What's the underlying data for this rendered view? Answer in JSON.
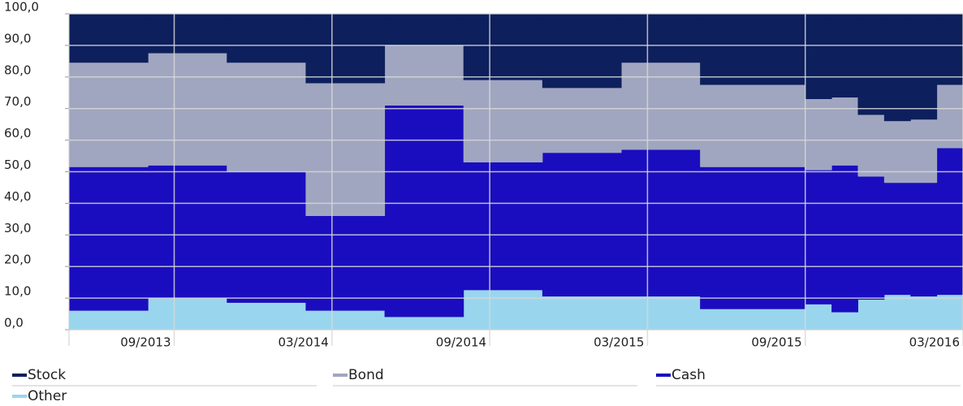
{
  "chart_data": {
    "type": "step-area",
    "x": [
      "05/2013",
      "08/2013",
      "11/2013",
      "02/2014",
      "05/2014",
      "08/2014",
      "11/2014",
      "02/2015",
      "05/2015",
      "09/2015",
      "10/2015",
      "11/2015",
      "12/2015",
      "01/2016",
      "02/2016"
    ],
    "xlim": [
      "05/2013",
      "03/2016"
    ],
    "xticks": [
      "09/2013",
      "03/2014",
      "09/2014",
      "03/2015",
      "09/2015",
      "03/2016"
    ],
    "ylim": [
      0,
      100
    ],
    "yticks": [
      {
        "value": 0,
        "label": "0,0"
      },
      {
        "value": 10,
        "label": "10,0"
      },
      {
        "value": 20,
        "label": "20,0"
      },
      {
        "value": 30,
        "label": "30,0"
      },
      {
        "value": 40,
        "label": "40,0"
      },
      {
        "value": 50,
        "label": "50,0"
      },
      {
        "value": 60,
        "label": "60,0"
      },
      {
        "value": 70,
        "label": "70,0"
      },
      {
        "value": 80,
        "label": "80,0"
      },
      {
        "value": 90,
        "label": "90,0"
      },
      {
        "value": 100,
        "label": "100,0"
      }
    ],
    "grid": true,
    "series": [
      {
        "name": "Stock",
        "color": "#0d1f5c",
        "values": [
          15.5,
          12.5,
          15.5,
          22,
          10,
          21,
          23.5,
          15.5,
          22.5,
          27,
          26.5,
          32,
          34,
          33.5,
          22.5
        ]
      },
      {
        "name": "Bond",
        "color": "#a0a6c0",
        "values": [
          33,
          35.5,
          34.5,
          42,
          19,
          26,
          20.5,
          27.5,
          26,
          22.5,
          21.5,
          19.5,
          19.5,
          20,
          20
        ]
      },
      {
        "name": "Cash",
        "color": "#1a0dbf",
        "values": [
          45.5,
          42,
          41.5,
          30,
          67,
          40.5,
          45.5,
          46.5,
          45,
          42.5,
          46.5,
          39,
          35.5,
          36,
          46.5
        ]
      },
      {
        "name": "Other",
        "color": "#99d6ee",
        "values": [
          6,
          10,
          8.5,
          6,
          4,
          12.5,
          10.5,
          10.5,
          6.5,
          8,
          5.5,
          9.5,
          11,
          10.5,
          11
        ]
      }
    ]
  }
}
